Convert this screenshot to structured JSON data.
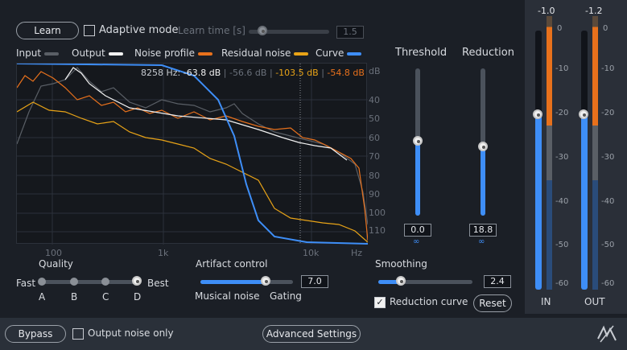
{
  "top": {
    "learn_label": "Learn",
    "adaptive_label": "Adaptive mode",
    "learn_time_label": "Learn time [s]",
    "learn_time_value": "1.5",
    "learn_time_fraction": 0.1
  },
  "legend": {
    "input": "Input",
    "output": "Output",
    "noise_profile": "Noise profile",
    "residual_noise": "Residual noise",
    "curve": "Curve",
    "colors": {
      "input": "#5a5f66",
      "output": "#f2f2f2",
      "noise_profile": "#e8711c",
      "residual_noise": "#e8a317",
      "curve": "#3e8ef7"
    }
  },
  "readout": {
    "freq": "8258 Hz:",
    "v1": "-63.8 dB",
    "v2": "-56.6 dB",
    "v3": "-103.5 dB",
    "v4": "-54.8 dB"
  },
  "db_axis": {
    "unit": "dB",
    "ticks": [
      "40",
      "50",
      "60",
      "70",
      "80",
      "90",
      "100",
      "110"
    ]
  },
  "freq_axis": {
    "ticks": [
      "100",
      "1k",
      "10k",
      "Hz"
    ]
  },
  "threshold": {
    "label": "Threshold",
    "value": "0.0",
    "fraction": 0.6
  },
  "reduction": {
    "label": "Reduction",
    "value": "18.8",
    "fraction": 0.56
  },
  "quality": {
    "label": "Quality",
    "left": "Fast",
    "right": "Best",
    "steps": [
      "A",
      "B",
      "C",
      "D"
    ],
    "selected": "D"
  },
  "artifact": {
    "label": "Artifact control",
    "value": "7.0",
    "fraction": 0.7,
    "left": "Musical noise",
    "right": "Gating"
  },
  "smoothing": {
    "label": "Smoothing",
    "value": "2.4",
    "fraction": 0.24
  },
  "reduction_curve_label": "Reduction curve",
  "reset_label": "Reset",
  "meters": {
    "in_peak": "-1.0",
    "out_peak": "-1.2",
    "scale": [
      "0",
      "-10",
      "-20",
      "-30",
      "-40",
      "-50",
      "-60"
    ],
    "in_label": "IN",
    "out_label": "OUT",
    "in_fader": 0.82,
    "out_fader": 0.82
  },
  "bottom": {
    "bypass_label": "Bypass",
    "output_noise_label": "Output noise only",
    "advanced_label": "Advanced Settings"
  },
  "icons": {
    "link": "link-icon",
    "logo": "izotope-logo-icon"
  }
}
